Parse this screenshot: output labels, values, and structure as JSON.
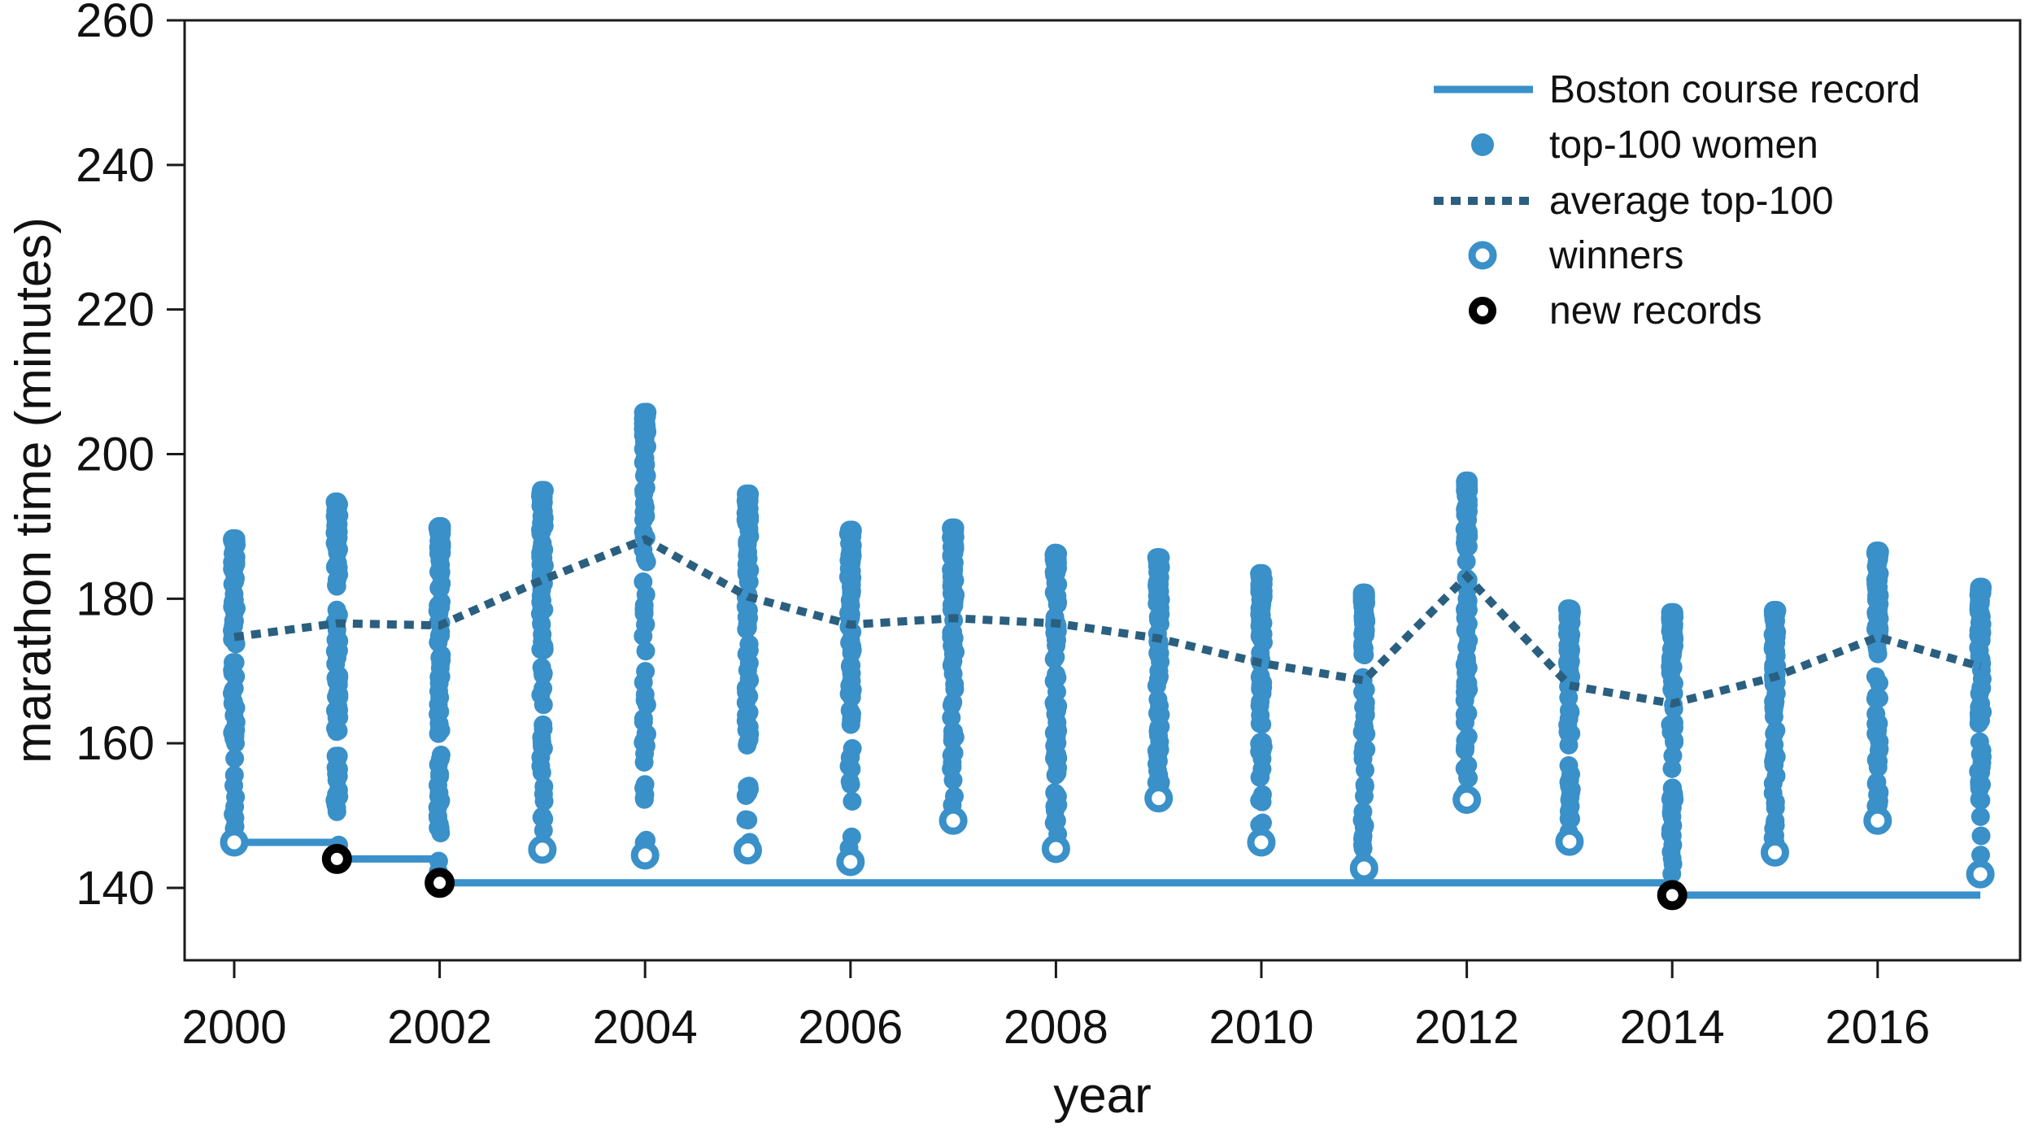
{
  "chart_data": {
    "type": "scatter",
    "title": "",
    "xlabel": "year",
    "ylabel": "marathon time (minutes)",
    "x_ticks": [
      2000,
      2002,
      2004,
      2006,
      2008,
      2010,
      2012,
      2014,
      2016
    ],
    "y_ticks": [
      140,
      160,
      180,
      200,
      220,
      240,
      260
    ],
    "xlim": [
      1999.52,
      2017.36
    ],
    "ylim": [
      129.8,
      260
    ],
    "grid": false,
    "legend_position": "upper-right-inside",
    "legend": [
      {
        "id": "record",
        "label": "Boston course record",
        "marker": "solid-line"
      },
      {
        "id": "top100",
        "label": "top-100 women",
        "marker": "filled-dot"
      },
      {
        "id": "avg",
        "label": "average top-100",
        "marker": "dotted-line"
      },
      {
        "id": "winners",
        "label": "winners",
        "marker": "open-circle-blue"
      },
      {
        "id": "new_records",
        "label": "new records",
        "marker": "open-circle-black"
      }
    ],
    "colors": {
      "blue": "#3a90c9",
      "scatter_blue": "#3a90c9",
      "scatter_opacity": 0.3,
      "dark_blue": "#2a5f80",
      "black": "#000000",
      "text": "#111111",
      "axis": "#1a1a1a"
    },
    "years": [
      {
        "year": 2000,
        "winner": 146.3,
        "new_record": false,
        "avg_top100": 174.7,
        "top100_slowest": 188.3
      },
      {
        "year": 2001,
        "winner": 144.0,
        "new_record": true,
        "avg_top100": 176.6,
        "top100_slowest": 193.4
      },
      {
        "year": 2002,
        "winner": 140.7,
        "new_record": true,
        "avg_top100": 176.3,
        "top100_slowest": 190.0
      },
      {
        "year": 2003,
        "winner": 145.3,
        "new_record": false,
        "avg_top100": 182.6,
        "top100_slowest": 195.0
      },
      {
        "year": 2004,
        "winner": 144.5,
        "new_record": false,
        "avg_top100": 188.2,
        "top100_slowest": 205.8
      },
      {
        "year": 2005,
        "winner": 145.2,
        "new_record": false,
        "avg_top100": 180.3,
        "top100_slowest": 194.5
      },
      {
        "year": 2006,
        "winner": 143.6,
        "new_record": false,
        "avg_top100": 176.4,
        "top100_slowest": 189.5
      },
      {
        "year": 2007,
        "winner": 149.3,
        "new_record": false,
        "avg_top100": 177.3,
        "top100_slowest": 189.8
      },
      {
        "year": 2008,
        "winner": 145.4,
        "new_record": false,
        "avg_top100": 176.6,
        "top100_slowest": 186.3
      },
      {
        "year": 2009,
        "winner": 152.4,
        "new_record": false,
        "avg_top100": 174.5,
        "top100_slowest": 185.7
      },
      {
        "year": 2010,
        "winner": 146.3,
        "new_record": false,
        "avg_top100": 171.1,
        "top100_slowest": 183.5
      },
      {
        "year": 2011,
        "winner": 142.7,
        "new_record": false,
        "avg_top100": 168.7,
        "top100_slowest": 180.8
      },
      {
        "year": 2012,
        "winner": 152.2,
        "new_record": false,
        "avg_top100": 183.1,
        "top100_slowest": 196.3
      },
      {
        "year": 2013,
        "winner": 146.4,
        "new_record": false,
        "avg_top100": 168.0,
        "top100_slowest": 178.6
      },
      {
        "year": 2014,
        "winner": 139.0,
        "new_record": true,
        "avg_top100": 165.5,
        "top100_slowest": 178.1
      },
      {
        "year": 2015,
        "winner": 144.9,
        "new_record": false,
        "avg_top100": 169.2,
        "top100_slowest": 178.4
      },
      {
        "year": 2016,
        "winner": 149.3,
        "new_record": false,
        "avg_top100": 174.7,
        "top100_slowest": 186.6
      },
      {
        "year": 2017,
        "winner": 141.9,
        "new_record": false,
        "avg_top100": 170.6,
        "top100_slowest": 181.6
      }
    ],
    "course_record_steps": [
      {
        "from_year": 2000,
        "to_year": 2001,
        "record": 146.3
      },
      {
        "from_year": 2001,
        "to_year": 2002,
        "record": 144.0
      },
      {
        "from_year": 2002,
        "to_year": 2014,
        "record": 140.7
      },
      {
        "from_year": 2014,
        "to_year": 2017,
        "record": 139.0
      }
    ],
    "scatter_points_per_year": 100
  }
}
